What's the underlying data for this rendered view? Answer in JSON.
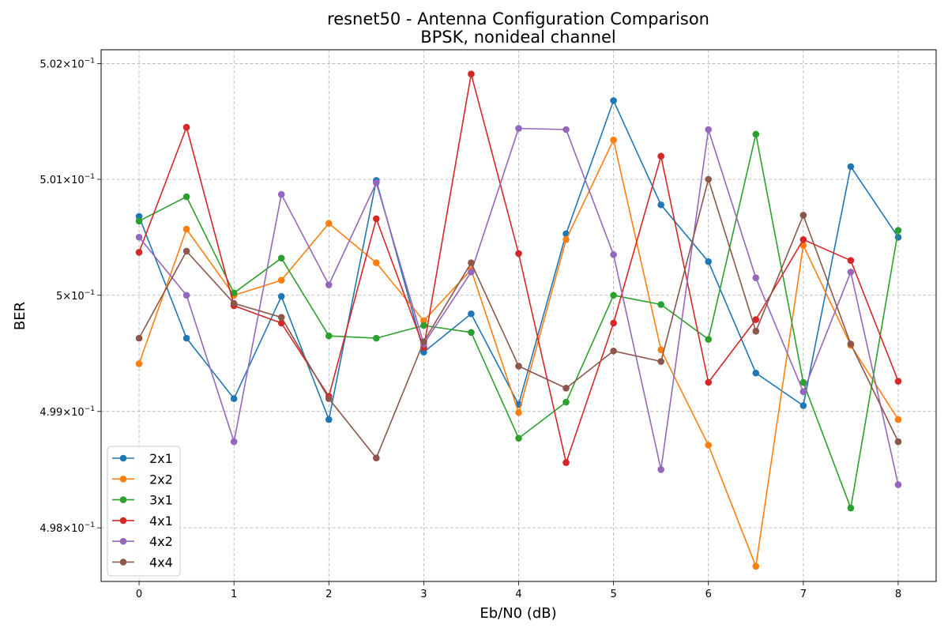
{
  "chart_data": {
    "type": "line",
    "title": "resnet50 - Antenna Configuration Comparison",
    "subtitle": "BPSK, nonideal channel",
    "xlabel": "Eb/N0 (dB)",
    "ylabel": "BER",
    "xlim": [
      -0.4,
      8.4
    ],
    "ylim": [
      0.49754,
      0.50212
    ],
    "x_scale": "linear",
    "y_scale": "log",
    "grid": true,
    "legend_position": "lower-left",
    "x_ticks": [
      0,
      1,
      2,
      3,
      4,
      5,
      6,
      7,
      8
    ],
    "x_tick_labels": [
      "0",
      "1",
      "2",
      "3",
      "4",
      "5",
      "6",
      "7",
      "8"
    ],
    "y_ticks": [
      0.498,
      0.499,
      0.5,
      0.501,
      0.502
    ],
    "y_tick_labels": [
      {
        "mantissa": "4.98",
        "exponent": "−1"
      },
      {
        "mantissa": "4.99",
        "exponent": "−1"
      },
      {
        "mantissa": "5",
        "exponent": "−1"
      },
      {
        "mantissa": "5.01",
        "exponent": "−1"
      },
      {
        "mantissa": "5.02",
        "exponent": "−1"
      }
    ],
    "x": [
      0,
      0.5,
      1,
      1.5,
      2,
      2.5,
      3,
      3.5,
      4,
      4.5,
      5,
      5.5,
      6,
      6.5,
      7,
      7.5,
      8
    ],
    "series": [
      {
        "name": "2x1",
        "color": "#1f77b4",
        "values": [
          0.50068,
          0.49963,
          0.49911,
          0.49999,
          0.49893,
          0.50099,
          0.49951,
          0.49984,
          0.49906,
          0.50053,
          0.50168,
          0.50078,
          0.50029,
          0.49933,
          0.49905,
          0.50111,
          0.5005
        ]
      },
      {
        "name": "2x2",
        "color": "#ff7f0e",
        "values": [
          0.49941,
          0.50057,
          0.5,
          0.50013,
          0.50062,
          0.50028,
          0.49978,
          0.50022,
          0.49899,
          0.50048,
          0.50134,
          0.49953,
          0.49871,
          0.49767,
          0.50043,
          0.49957,
          0.49893
        ]
      },
      {
        "name": "3x1",
        "color": "#2ca02c",
        "values": [
          0.50064,
          0.50085,
          0.50002,
          0.50032,
          0.49965,
          0.49963,
          0.49974,
          0.49968,
          0.49877,
          0.49908,
          0.5,
          0.49992,
          0.49962,
          0.50139,
          0.49925,
          0.49817,
          0.50056
        ]
      },
      {
        "name": "4x1",
        "color": "#d62728",
        "values": [
          0.50037,
          0.50145,
          0.49991,
          0.49976,
          0.49913,
          0.50066,
          0.49955,
          0.50191,
          0.50036,
          0.49856,
          0.49976,
          0.5012,
          0.49925,
          0.49979,
          0.50048,
          0.5003,
          0.49926
        ]
      },
      {
        "name": "4x2",
        "color": "#9467bd",
        "values": [
          0.5005,
          0.5,
          0.49874,
          0.50087,
          0.50009,
          0.50097,
          0.49958,
          0.5002,
          0.50144,
          0.50143,
          0.50035,
          0.4985,
          0.50143,
          0.50015,
          0.49917,
          0.5002,
          0.49837
        ]
      },
      {
        "name": "4x4",
        "color": "#8c564b",
        "values": [
          0.49963,
          0.50038,
          0.49993,
          0.49981,
          0.49911,
          0.4986,
          0.4996,
          0.50028,
          0.49939,
          0.4992,
          0.49952,
          0.49943,
          0.501,
          0.49969,
          0.50069,
          0.49958,
          0.49874
        ]
      }
    ]
  }
}
